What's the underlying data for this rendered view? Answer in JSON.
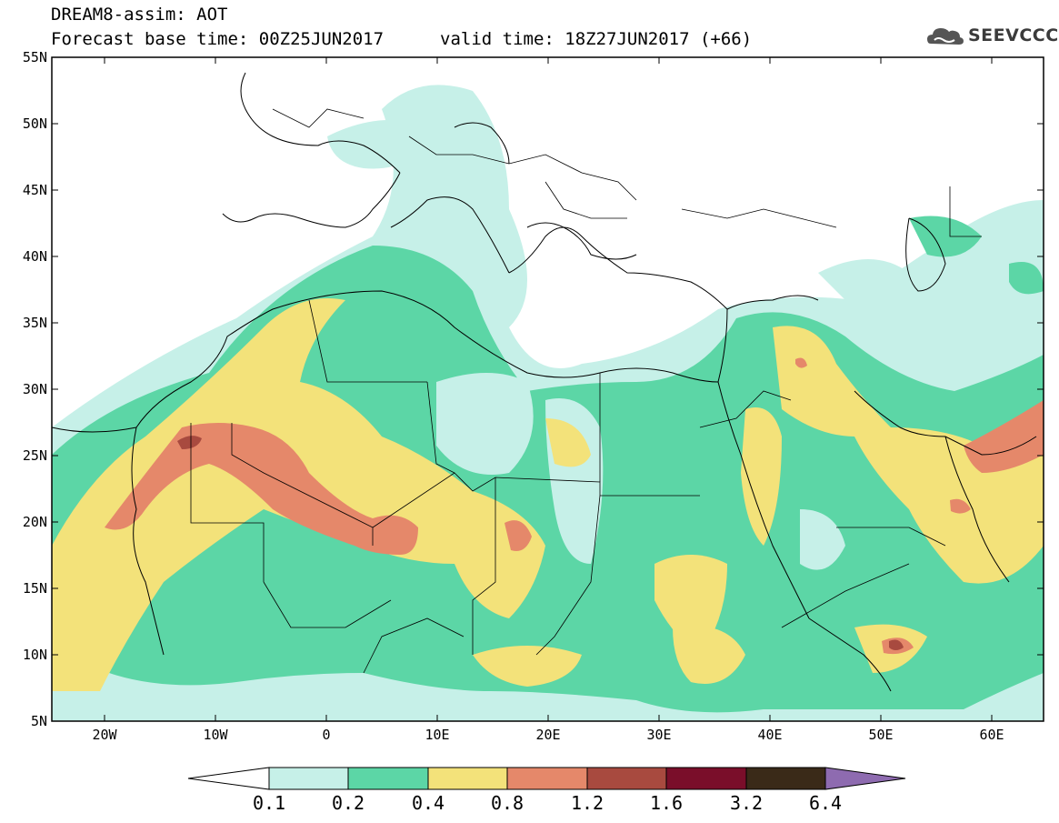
{
  "header": {
    "line1": "DREAM8-assim: AOT",
    "base_time": "Forecast base time: 00Z25JUN2017",
    "valid_time": "valid time: 18Z27JUN2017 (+66)"
  },
  "logo": {
    "text": "SEEVCCC",
    "icon": "cloud-logo-icon"
  },
  "map": {
    "lat_labels": [
      "55N",
      "50N",
      "45N",
      "40N",
      "35N",
      "30N",
      "25N",
      "20N",
      "15N",
      "10N",
      "5N"
    ],
    "lon_labels": [
      "20W",
      "10W",
      "0",
      "10E",
      "20E",
      "30E",
      "40E",
      "50E",
      "60E"
    ],
    "lon_range": [
      -25,
      65
    ],
    "lat_range": [
      5,
      55
    ]
  },
  "colorbar": {
    "labels": [
      "0.1",
      "0.2",
      "0.4",
      "0.8",
      "1.2",
      "1.6",
      "3.2",
      "6.4"
    ],
    "colors": [
      "#ffffff",
      "#c6f0e8",
      "#5cd6a6",
      "#f3e27a",
      "#e5886a",
      "#a84a3f",
      "#7a0e2a",
      "#3a2a18",
      "#8e6bb0"
    ]
  }
}
